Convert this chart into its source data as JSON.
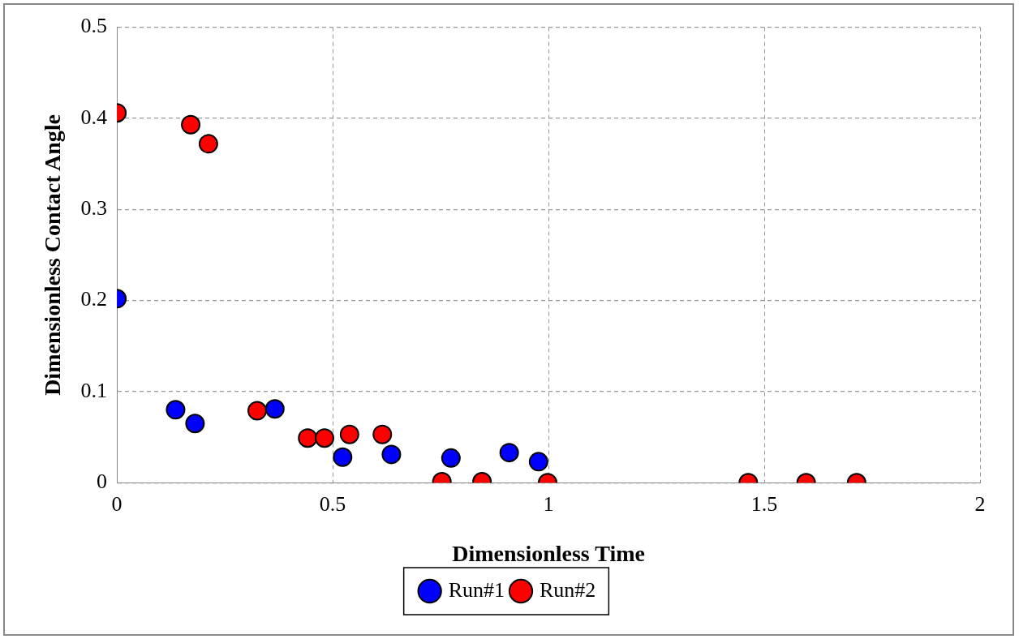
{
  "chart_data": {
    "type": "scatter",
    "xlabel": "Dimensionless Time",
    "ylabel": "Dimensionless Contact Angle",
    "xlim": [
      0,
      2
    ],
    "xticks": [
      0,
      0.5,
      1,
      1.5,
      2
    ],
    "ylim": [
      0,
      0.5
    ],
    "yticks": [
      0,
      0.1,
      0.2,
      0.3,
      0.4,
      0.5
    ],
    "grid": true,
    "legend": "bottom",
    "marker": "circle",
    "series": [
      {
        "name": "Run#1",
        "color": "#0000ff",
        "x": [
          0,
          0.136,
          0.181,
          0.366,
          0.523,
          0.636,
          0.774,
          0.909,
          0.977
        ],
        "values": [
          0.202,
          0.08,
          0.065,
          0.081,
          0.028,
          0.031,
          0.027,
          0.033,
          0.023
        ]
      },
      {
        "name": "Run#2",
        "color": "#ff0000",
        "x": [
          0,
          0.171,
          0.212,
          0.325,
          0.442,
          0.481,
          0.539,
          0.615,
          0.753,
          0.846,
          0.998,
          1.463,
          1.597,
          1.714
        ],
        "values": [
          0.406,
          0.393,
          0.372,
          0.079,
          0.049,
          0.049,
          0.053,
          0.053,
          0.001,
          0.001,
          0,
          0,
          0,
          0
        ]
      }
    ]
  }
}
